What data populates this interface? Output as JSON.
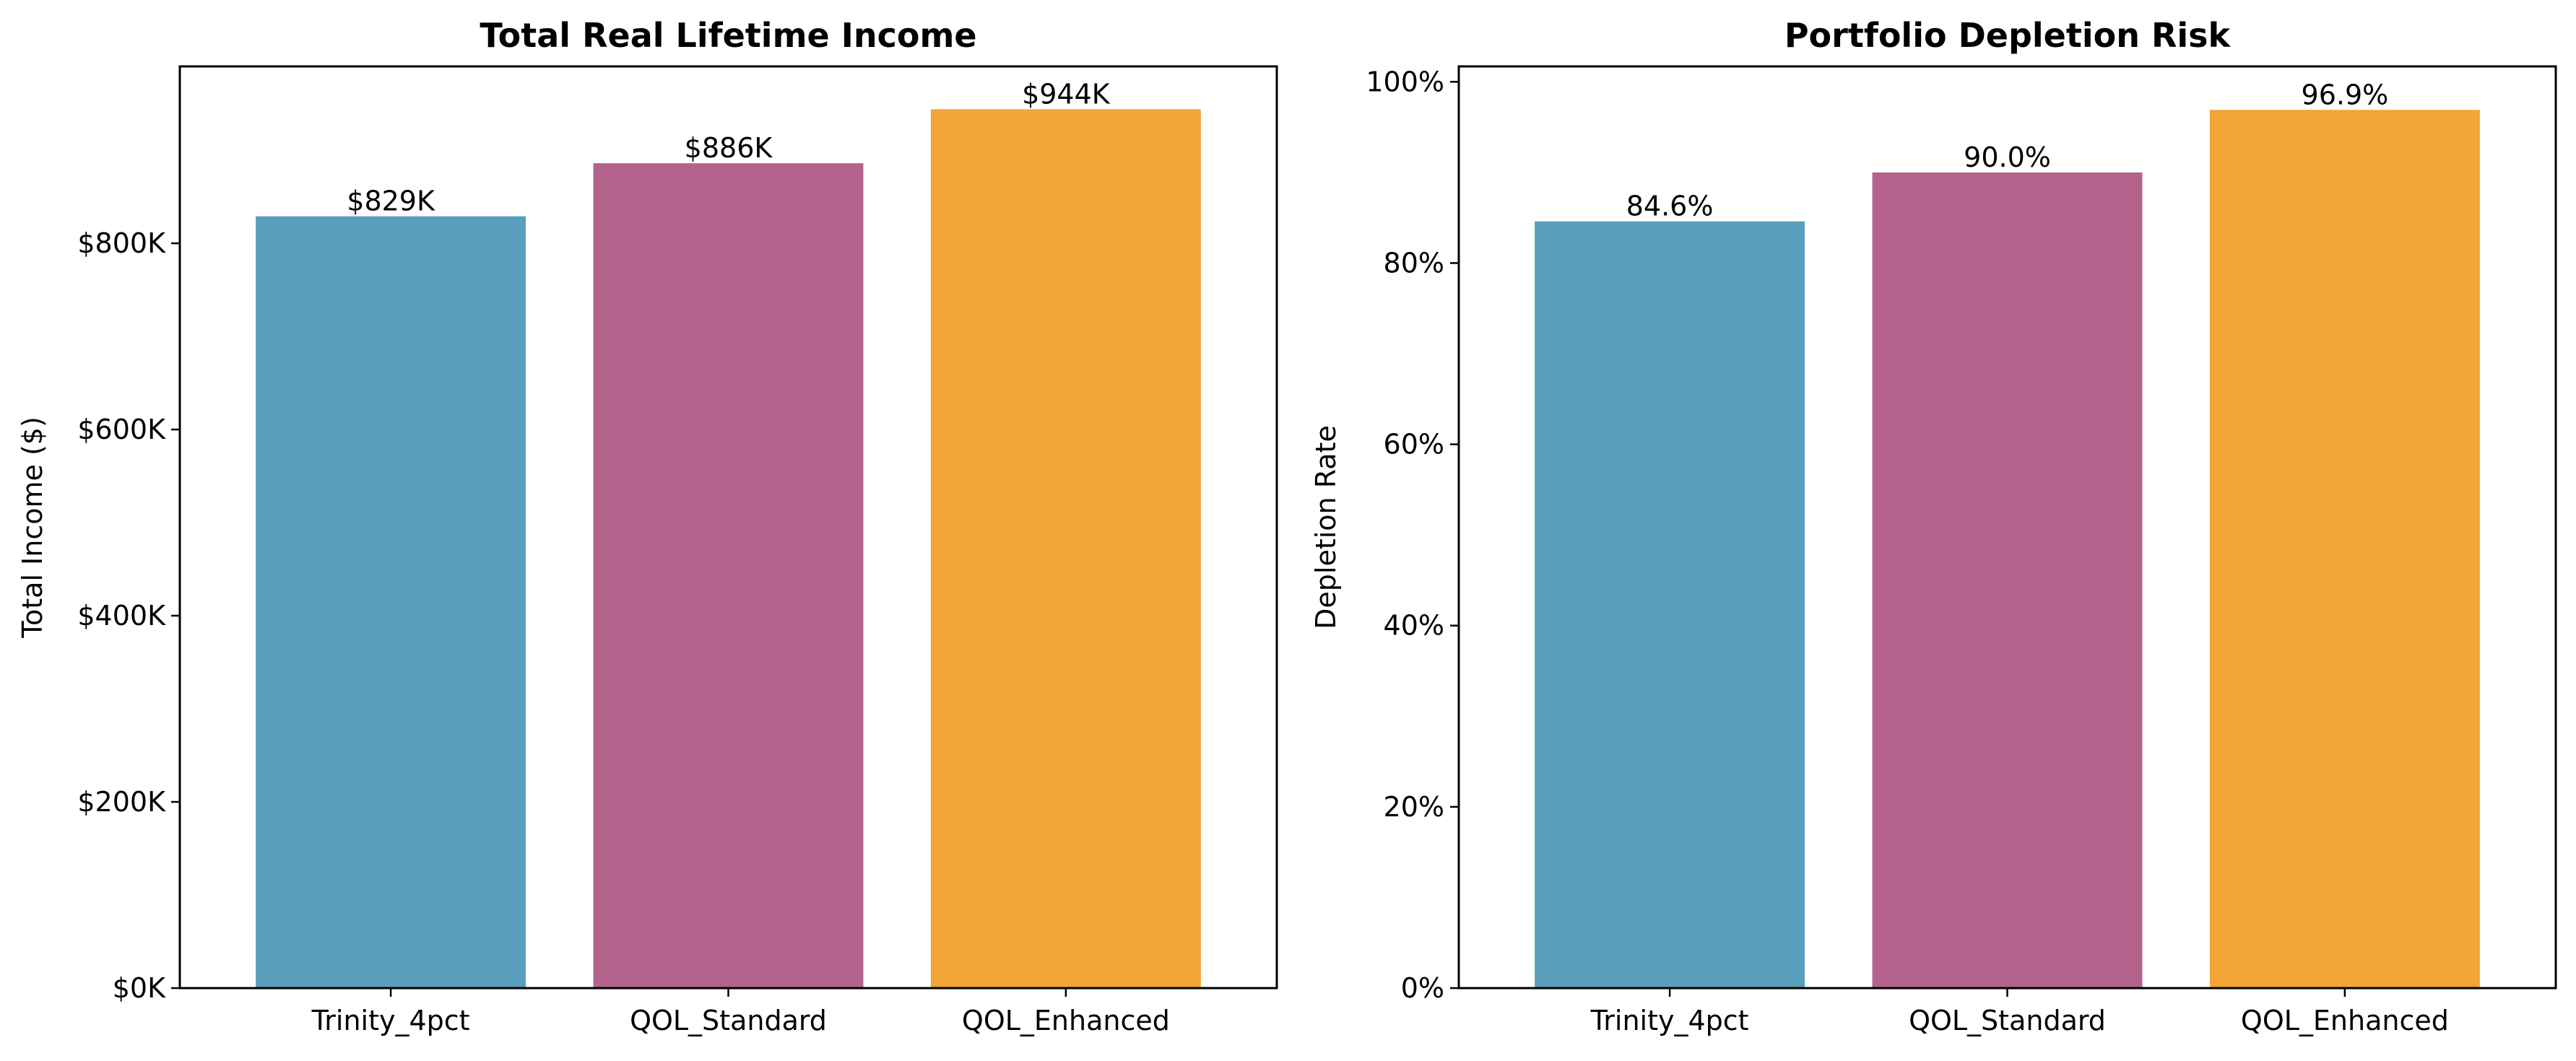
{
  "chart_data": [
    {
      "type": "bar",
      "title": "Total Real Lifetime Income",
      "xlabel": "",
      "ylabel": "Total Income ($)",
      "categories": [
        "Trinity_4pct",
        "QOL_Standard",
        "QOL_Enhanced"
      ],
      "values": [
        829000,
        886000,
        944000
      ],
      "value_labels": [
        "$829K",
        "$886K",
        "$944K"
      ],
      "colors": [
        "#5a9ebd",
        "#b3638b",
        "#f2a535"
      ],
      "ylim": [
        0,
        990000
      ],
      "yticks": [
        0,
        200000,
        400000,
        600000,
        800000
      ],
      "ytick_labels": [
        "$0K",
        "$200K",
        "$400K",
        "$600K",
        "$800K"
      ],
      "grid": false
    },
    {
      "type": "bar",
      "title": "Portfolio Depletion Risk",
      "xlabel": "",
      "ylabel": "Depletion Rate",
      "categories": [
        "Trinity_4pct",
        "QOL_Standard",
        "QOL_Enhanced"
      ],
      "values": [
        84.6,
        90.0,
        96.9
      ],
      "value_labels": [
        "84.6%",
        "90.0%",
        "96.9%"
      ],
      "colors": [
        "#5a9ebd",
        "#b3638b",
        "#f2a535"
      ],
      "ylim": [
        0,
        101.7
      ],
      "yticks": [
        0,
        20,
        40,
        60,
        80,
        100
      ],
      "ytick_labels": [
        "0%",
        "20%",
        "40%",
        "60%",
        "80%",
        "100%"
      ],
      "grid": false
    }
  ]
}
